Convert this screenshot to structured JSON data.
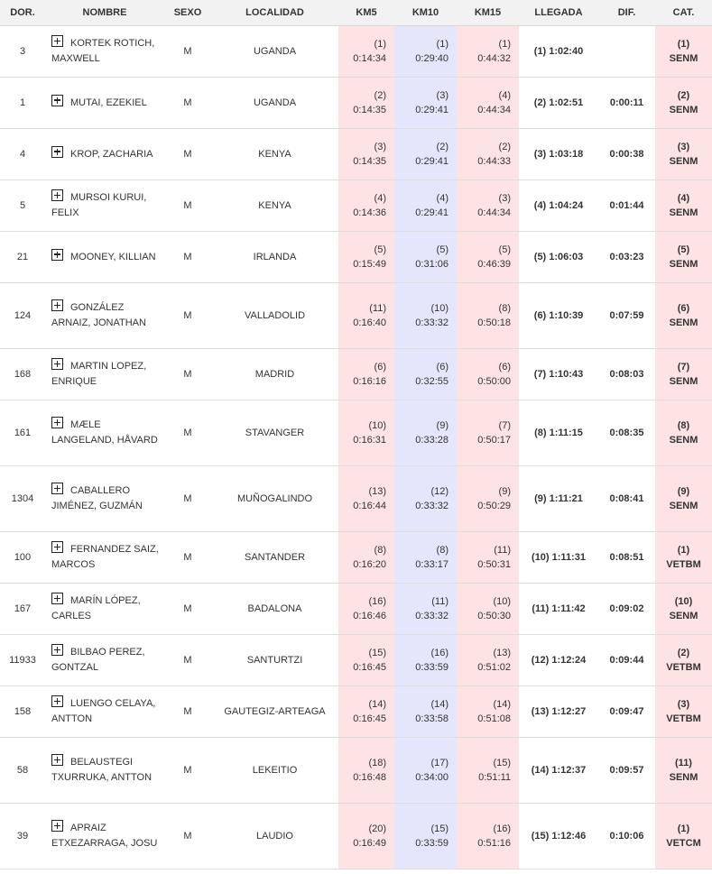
{
  "headers": {
    "dorsal": "DOR.",
    "nombre": "NOMBRE",
    "sexo": "SEXO",
    "localidad": "LOCALIDAD",
    "km5": "KM5",
    "km10": "KM10",
    "km15": "KM15",
    "llegada": "LLEGADA",
    "dif": "DIF.",
    "cat": "CAT."
  },
  "colors": {
    "km5_bg": "#fde3e3",
    "km10_bg": "#e5e5fb",
    "km15_bg": "#fde3e3",
    "cat_bg": "#fde3e3",
    "header_bg": "#f2f2f2"
  },
  "rows": [
    {
      "dorsal": "3",
      "nombre": "KORTEK ROTICH, MAXWELL",
      "sexo": "M",
      "localidad": "UGANDA",
      "km5_pos": "(1)",
      "km5_time": "0:14:34",
      "km10_pos": "(1)",
      "km10_time": "0:29:40",
      "km15_pos": "(1)",
      "km15_time": "0:44:32",
      "llegada": "(1) 1:02:40",
      "dif": "",
      "cat_pos": "(1)",
      "cat_name": "SENM"
    },
    {
      "dorsal": "1",
      "nombre": "MUTAI, EZEKIEL",
      "sexo": "M",
      "localidad": "UGANDA",
      "km5_pos": "(2)",
      "km5_time": "0:14:35",
      "km10_pos": "(3)",
      "km10_time": "0:29:41",
      "km15_pos": "(4)",
      "km15_time": "0:44:34",
      "llegada": "(2) 1:02:51",
      "dif": "0:00:11",
      "cat_pos": "(2)",
      "cat_name": "SENM"
    },
    {
      "dorsal": "4",
      "nombre": "KROP, ZACHARIA",
      "sexo": "M",
      "localidad": "KENYA",
      "km5_pos": "(3)",
      "km5_time": "0:14:35",
      "km10_pos": "(2)",
      "km10_time": "0:29:41",
      "km15_pos": "(2)",
      "km15_time": "0:44:33",
      "llegada": "(3) 1:03:18",
      "dif": "0:00:38",
      "cat_pos": "(3)",
      "cat_name": "SENM"
    },
    {
      "dorsal": "5",
      "nombre": "MURSOI KURUI, FELIX",
      "sexo": "M",
      "localidad": "KENYA",
      "km5_pos": "(4)",
      "km5_time": "0:14:36",
      "km10_pos": "(4)",
      "km10_time": "0:29:41",
      "km15_pos": "(3)",
      "km15_time": "0:44:34",
      "llegada": "(4) 1:04:24",
      "dif": "0:01:44",
      "cat_pos": "(4)",
      "cat_name": "SENM"
    },
    {
      "dorsal": "21",
      "nombre": "MOONEY, KILLIAN",
      "sexo": "M",
      "localidad": "IRLANDA",
      "km5_pos": "(5)",
      "km5_time": "0:15:49",
      "km10_pos": "(5)",
      "km10_time": "0:31:06",
      "km15_pos": "(5)",
      "km15_time": "0:46:39",
      "llegada": "(5) 1:06:03",
      "dif": "0:03:23",
      "cat_pos": "(5)",
      "cat_name": "SENM"
    },
    {
      "dorsal": "124",
      "nombre": "GONZÁLEZ ARNAIZ, JONATHAN",
      "sexo": "M",
      "localidad": "VALLADOLID",
      "km5_pos": "(11)",
      "km5_time": "0:16:40",
      "km10_pos": "(10)",
      "km10_time": "0:33:32",
      "km15_pos": "(8)",
      "km15_time": "0:50:18",
      "llegada": "(6) 1:10:39",
      "dif": "0:07:59",
      "cat_pos": "(6)",
      "cat_name": "SENM"
    },
    {
      "dorsal": "168",
      "nombre": "MARTIN LOPEZ, ENRIQUE",
      "sexo": "M",
      "localidad": "MADRID",
      "km5_pos": "(6)",
      "km5_time": "0:16:16",
      "km10_pos": "(6)",
      "km10_time": "0:32:55",
      "km15_pos": "(6)",
      "km15_time": "0:50:00",
      "llegada": "(7) 1:10:43",
      "dif": "0:08:03",
      "cat_pos": "(7)",
      "cat_name": "SENM"
    },
    {
      "dorsal": "161",
      "nombre": "MÆLE LANGELAND, HÅVARD",
      "sexo": "M",
      "localidad": "STAVANGER",
      "km5_pos": "(10)",
      "km5_time": "0:16:31",
      "km10_pos": "(9)",
      "km10_time": "0:33:28",
      "km15_pos": "(7)",
      "km15_time": "0:50:17",
      "llegada": "(8) 1:11:15",
      "dif": "0:08:35",
      "cat_pos": "(8)",
      "cat_name": "SENM"
    },
    {
      "dorsal": "1304",
      "nombre": "CABALLERO JIMÉNEZ, GUZMÁN",
      "sexo": "M",
      "localidad": "MUÑOGALINDO",
      "km5_pos": "(13)",
      "km5_time": "0:16:44",
      "km10_pos": "(12)",
      "km10_time": "0:33:32",
      "km15_pos": "(9)",
      "km15_time": "0:50:29",
      "llegada": "(9) 1:11:21",
      "dif": "0:08:41",
      "cat_pos": "(9)",
      "cat_name": "SENM"
    },
    {
      "dorsal": "100",
      "nombre": "FERNANDEZ SAIZ, MARCOS",
      "sexo": "M",
      "localidad": "SANTANDER",
      "km5_pos": "(8)",
      "km5_time": "0:16:20",
      "km10_pos": "(8)",
      "km10_time": "0:33:17",
      "km15_pos": "(11)",
      "km15_time": "0:50:31",
      "llegada": "(10) 1:11:31",
      "dif": "0:08:51",
      "cat_pos": "(1)",
      "cat_name": "VETBM"
    },
    {
      "dorsal": "167",
      "nombre": "MARÍN LÓPEZ, CARLES",
      "sexo": "M",
      "localidad": "BADALONA",
      "km5_pos": "(16)",
      "km5_time": "0:16:46",
      "km10_pos": "(11)",
      "km10_time": "0:33:32",
      "km15_pos": "(10)",
      "km15_time": "0:50:30",
      "llegada": "(11) 1:11:42",
      "dif": "0:09:02",
      "cat_pos": "(10)",
      "cat_name": "SENM"
    },
    {
      "dorsal": "11933",
      "nombre": "BILBAO PEREZ, GONTZAL",
      "sexo": "M",
      "localidad": "SANTURTZI",
      "km5_pos": "(15)",
      "km5_time": "0:16:45",
      "km10_pos": "(16)",
      "km10_time": "0:33:59",
      "km15_pos": "(13)",
      "km15_time": "0:51:02",
      "llegada": "(12) 1:12:24",
      "dif": "0:09:44",
      "cat_pos": "(2)",
      "cat_name": "VETBM"
    },
    {
      "dorsal": "158",
      "nombre": "LUENGO CELAYA, ANTTON",
      "sexo": "M",
      "localidad": "GAUTEGIZ-ARTEAGA",
      "km5_pos": "(14)",
      "km5_time": "0:16:45",
      "km10_pos": "(14)",
      "km10_time": "0:33:58",
      "km15_pos": "(14)",
      "km15_time": "0:51:08",
      "llegada": "(13) 1:12:27",
      "dif": "0:09:47",
      "cat_pos": "(3)",
      "cat_name": "VETBM"
    },
    {
      "dorsal": "58",
      "nombre": "BELAUSTEGI TXURRUKA, ANTTON",
      "sexo": "M",
      "localidad": "LEKEITIO",
      "km5_pos": "(18)",
      "km5_time": "0:16:48",
      "km10_pos": "(17)",
      "km10_time": "0:34:00",
      "km15_pos": "(15)",
      "km15_time": "0:51:11",
      "llegada": "(14) 1:12:37",
      "dif": "0:09:57",
      "cat_pos": "(11)",
      "cat_name": "SENM"
    },
    {
      "dorsal": "39",
      "nombre": "APRAIZ ETXEZARRAGA, JOSU",
      "sexo": "M",
      "localidad": "LAUDIO",
      "km5_pos": "(20)",
      "km5_time": "0:16:49",
      "km10_pos": "(15)",
      "km10_time": "0:33:59",
      "km15_pos": "(16)",
      "km15_time": "0:51:16",
      "llegada": "(15) 1:12:46",
      "dif": "0:10:06",
      "cat_pos": "(1)",
      "cat_name": "VETCM"
    }
  ]
}
